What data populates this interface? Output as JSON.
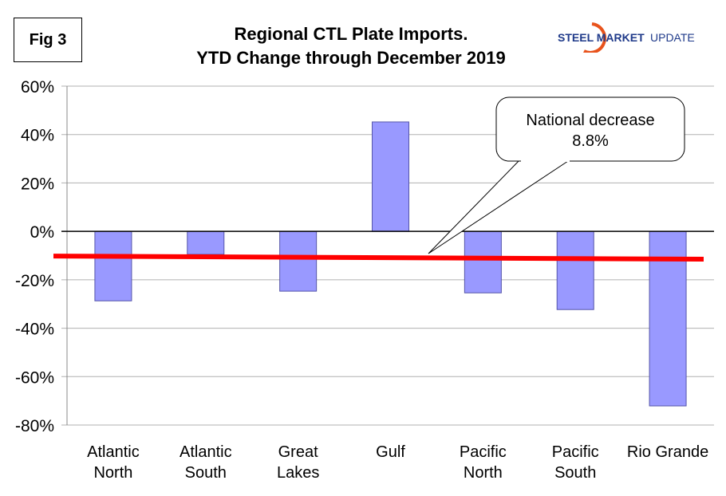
{
  "fig_label": "Fig 3",
  "logo": {
    "text_bold": "STEEL MARKET",
    "text_light": "UPDATE"
  },
  "chart_data": {
    "type": "bar",
    "title": "Regional CTL Plate Imports.",
    "subtitle": "YTD Change through December 2019",
    "categories": [
      [
        "Atlantic",
        "North"
      ],
      [
        "Atlantic",
        "South"
      ],
      [
        "Great",
        "Lakes"
      ],
      [
        "Gulf"
      ],
      [
        "Pacific",
        "North"
      ],
      [
        "Pacific",
        "South"
      ],
      [
        "Rio Grande"
      ]
    ],
    "values": [
      -28.7,
      -9.5,
      -24.7,
      45.2,
      -25.4,
      -32.3,
      -72.1
    ],
    "ylim": [
      -80,
      60
    ],
    "yticks": [
      60,
      40,
      20,
      0,
      -20,
      -40,
      -60,
      -80
    ],
    "ytick_labels": [
      "60%",
      "40%",
      "20%",
      "0%",
      "-20%",
      "-40%",
      "-60%",
      "-80%"
    ],
    "grid": true,
    "bar_color": "#9999ff",
    "trend_line": {
      "start": -10.2,
      "end": -11.5,
      "color": "#ff0000"
    },
    "annotation": {
      "line1": "National decrease",
      "line2": "8.8%"
    }
  }
}
